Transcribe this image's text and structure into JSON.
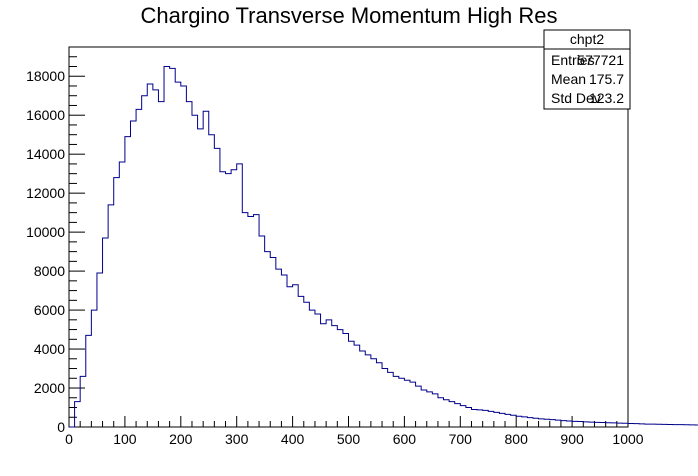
{
  "chart_data": {
    "type": "histogram",
    "title": "Chargino Transverse Momentum High Res",
    "xlabel": "",
    "ylabel": "",
    "xlim": [
      0,
      1000
    ],
    "ylim": [
      0,
      19500
    ],
    "x_ticks": [
      0,
      100,
      200,
      300,
      400,
      500,
      600,
      700,
      800,
      900,
      1000
    ],
    "y_ticks": [
      0,
      2000,
      4000,
      6000,
      8000,
      10000,
      12000,
      14000,
      16000,
      18000
    ],
    "bin_width": 10,
    "line_color": "#00008b",
    "grid": false,
    "legend": "none",
    "values": [
      0,
      1300,
      2600,
      4700,
      6000,
      7900,
      9700,
      11400,
      12800,
      13600,
      14900,
      15700,
      16300,
      17000,
      17600,
      17300,
      16700,
      18500,
      18400,
      17700,
      17500,
      16700,
      16000,
      15300,
      16200,
      15000,
      14300,
      13100,
      13000,
      13200,
      13500,
      11000,
      10800,
      10900,
      9800,
      9000,
      8700,
      8100,
      7800,
      7200,
      7300,
      6700,
      6400,
      6000,
      5800,
      5300,
      5500,
      5200,
      5000,
      4800,
      4400,
      4200,
      3900,
      3700,
      3500,
      3300,
      3000,
      2800,
      2600,
      2500,
      2400,
      2300,
      2100,
      1900,
      1800,
      1700,
      1500,
      1400,
      1300,
      1200,
      1100,
      1000,
      900,
      880,
      850,
      800,
      750,
      700,
      650,
      600,
      550,
      520,
      480,
      450,
      420,
      400,
      380,
      350,
      330,
      310,
      290,
      280,
      260,
      250,
      240,
      230,
      220,
      210,
      200,
      190,
      180,
      170,
      160,
      150,
      145,
      140,
      135,
      130,
      125,
      120,
      115,
      110,
      105,
      100,
      95,
      90,
      88,
      85,
      82,
      80,
      78,
      75,
      72,
      70,
      68,
      65,
      62,
      60,
      58,
      55,
      52,
      50,
      48,
      46,
      44,
      42,
      40,
      38,
      36,
      34,
      32,
      30,
      29,
      28,
      27,
      26,
      25,
      24,
      23,
      22,
      21,
      20,
      19,
      18,
      17,
      16,
      15,
      14,
      13,
      12,
      11,
      10,
      10,
      9,
      9,
      8,
      8,
      7,
      7,
      6,
      6,
      5,
      5,
      5,
      4,
      4,
      4,
      3,
      3,
      3,
      3,
      2,
      2,
      2,
      2,
      2,
      1,
      1,
      1,
      1,
      1,
      1,
      1,
      1,
      1,
      1,
      1,
      1,
      1,
      0
    ]
  },
  "stats_box": {
    "name": "chpt2",
    "rows": [
      {
        "label": "Entries",
        "value": "577721"
      },
      {
        "label": "Mean",
        "value": "175.7"
      },
      {
        "label": "Std Dev",
        "value": "123.2"
      }
    ]
  }
}
